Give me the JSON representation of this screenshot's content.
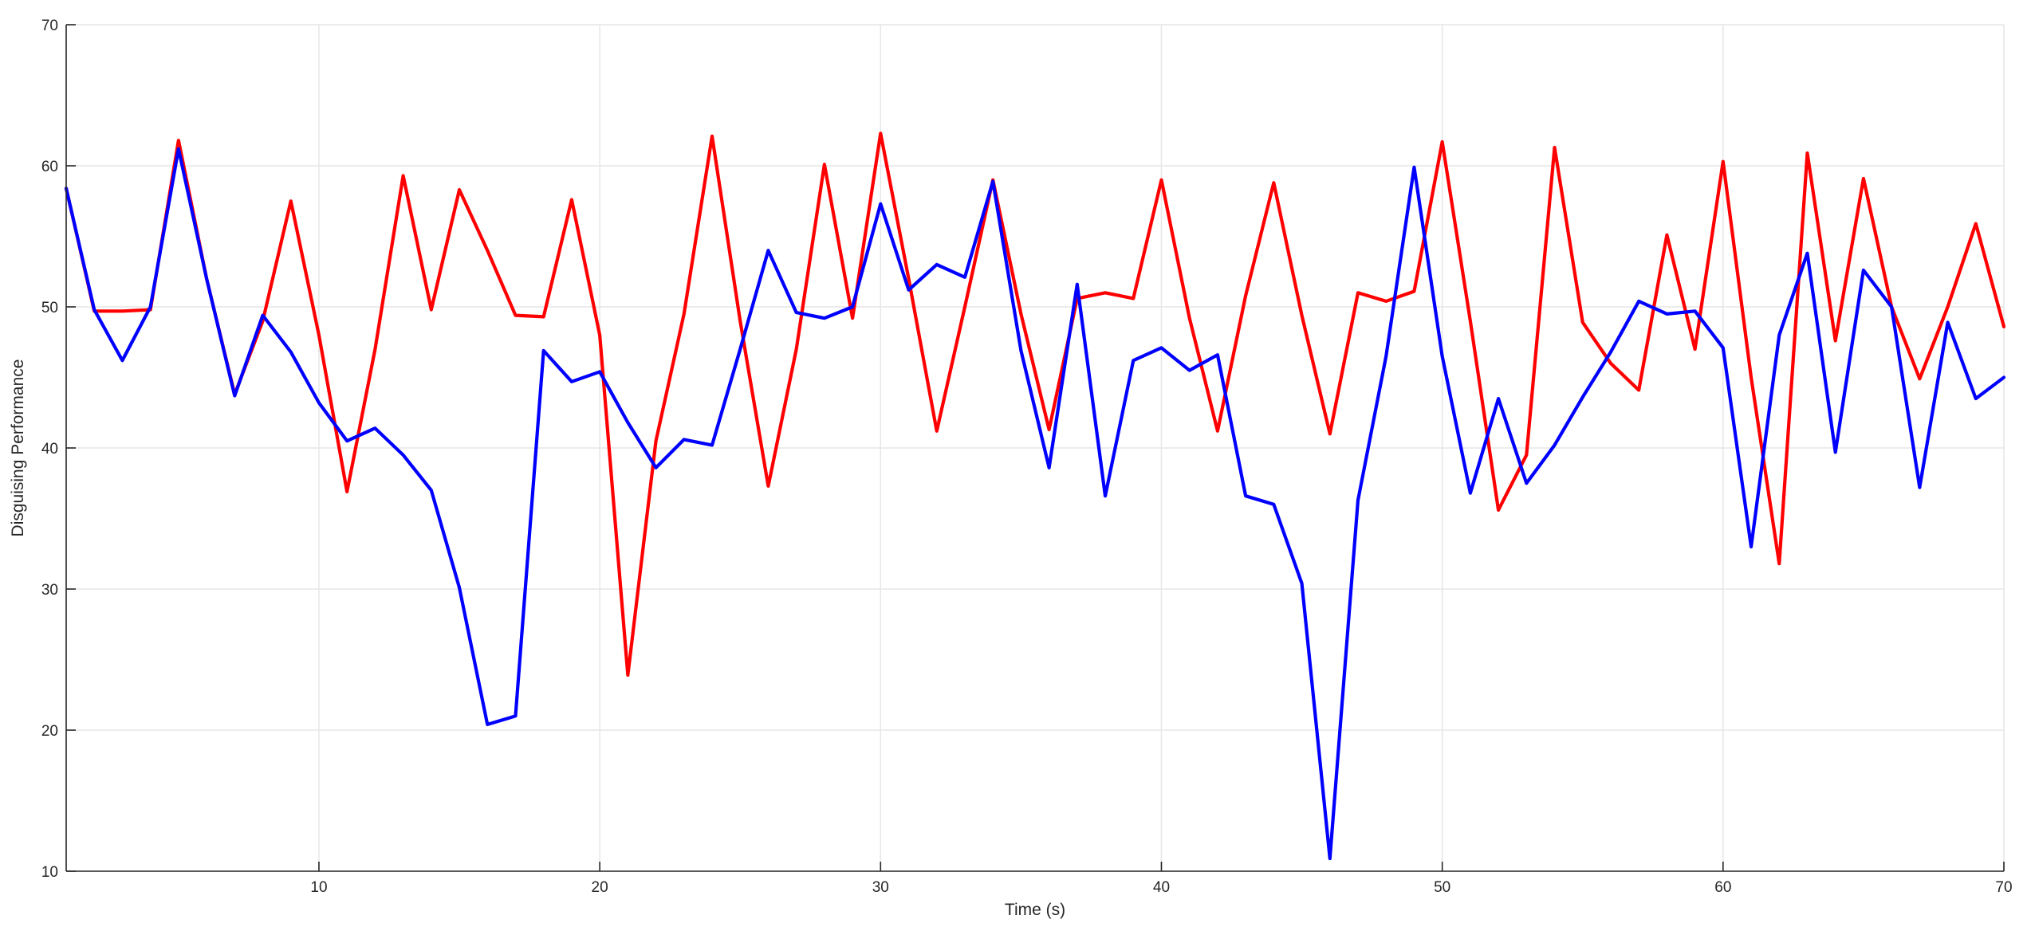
{
  "chart_data": {
    "type": "line",
    "title": "",
    "xlabel": "Time (s)",
    "ylabel": "Disguising Performance",
    "xlim": [
      1,
      70
    ],
    "ylim": [
      10,
      70
    ],
    "xticks": [
      10,
      20,
      30,
      40,
      50,
      60,
      70
    ],
    "yticks": [
      10,
      20,
      30,
      40,
      50,
      60,
      70
    ],
    "grid": true,
    "legend": "none",
    "x": [
      1,
      2,
      3,
      4,
      5,
      6,
      7,
      8,
      9,
      10,
      11,
      12,
      13,
      14,
      15,
      16,
      17,
      18,
      19,
      20,
      21,
      22,
      23,
      24,
      25,
      26,
      27,
      28,
      29,
      30,
      31,
      32,
      33,
      34,
      35,
      36,
      37,
      38,
      39,
      40,
      41,
      42,
      43,
      44,
      45,
      46,
      47,
      48,
      49,
      50,
      51,
      52,
      53,
      54,
      55,
      56,
      57,
      58,
      59,
      60,
      61,
      62,
      63,
      64,
      65,
      66,
      67,
      68,
      69,
      70
    ],
    "series": [
      {
        "color": "#ff0000",
        "values": [
          58.4,
          49.7,
          49.7,
          49.8,
          61.8,
          52.0,
          43.8,
          49.0,
          57.5,
          48.0,
          36.9,
          47.0,
          59.3,
          49.8,
          58.3,
          54.0,
          49.4,
          49.3,
          57.6,
          48.0,
          23.9,
          40.5,
          49.5,
          62.1,
          49.0,
          37.3,
          47.0,
          60.1,
          49.2,
          62.3,
          52.0,
          41.2,
          50.0,
          59.0,
          49.5,
          41.3,
          50.6,
          51.0,
          50.6,
          59.0,
          49.2,
          41.2,
          50.8,
          58.8,
          49.4,
          41.0,
          51.0,
          50.4,
          51.1,
          61.7,
          49.0,
          35.6,
          39.5,
          61.3,
          48.9,
          46.0,
          44.1,
          55.1,
          47.0,
          60.3,
          45.0,
          31.8,
          60.9,
          47.6,
          59.1,
          50.0,
          44.9,
          50.0,
          55.9,
          48.6
        ]
      },
      {
        "color": "#0000ff",
        "values": [
          58.4,
          49.8,
          46.2,
          50.0,
          61.2,
          52.0,
          43.7,
          49.4,
          46.8,
          43.2,
          40.5,
          41.4,
          39.5,
          37.0,
          30.1,
          20.4,
          21.0,
          46.9,
          44.7,
          45.4,
          41.8,
          38.6,
          40.6,
          40.2,
          47.0,
          54.0,
          49.6,
          49.2,
          50.0,
          57.3,
          51.2,
          53.0,
          52.1,
          58.9,
          46.9,
          38.6,
          51.6,
          36.6,
          46.2,
          47.1,
          45.5,
          46.6,
          36.6,
          36.0,
          30.4,
          10.9,
          36.3,
          46.5,
          59.9,
          46.5,
          36.8,
          43.5,
          37.5,
          40.2,
          43.6,
          46.8,
          50.4,
          49.5,
          49.7,
          47.1,
          33.0,
          48.0,
          53.8,
          39.7,
          52.6,
          50.0,
          37.2,
          48.9,
          43.5,
          45.0
        ]
      }
    ]
  }
}
